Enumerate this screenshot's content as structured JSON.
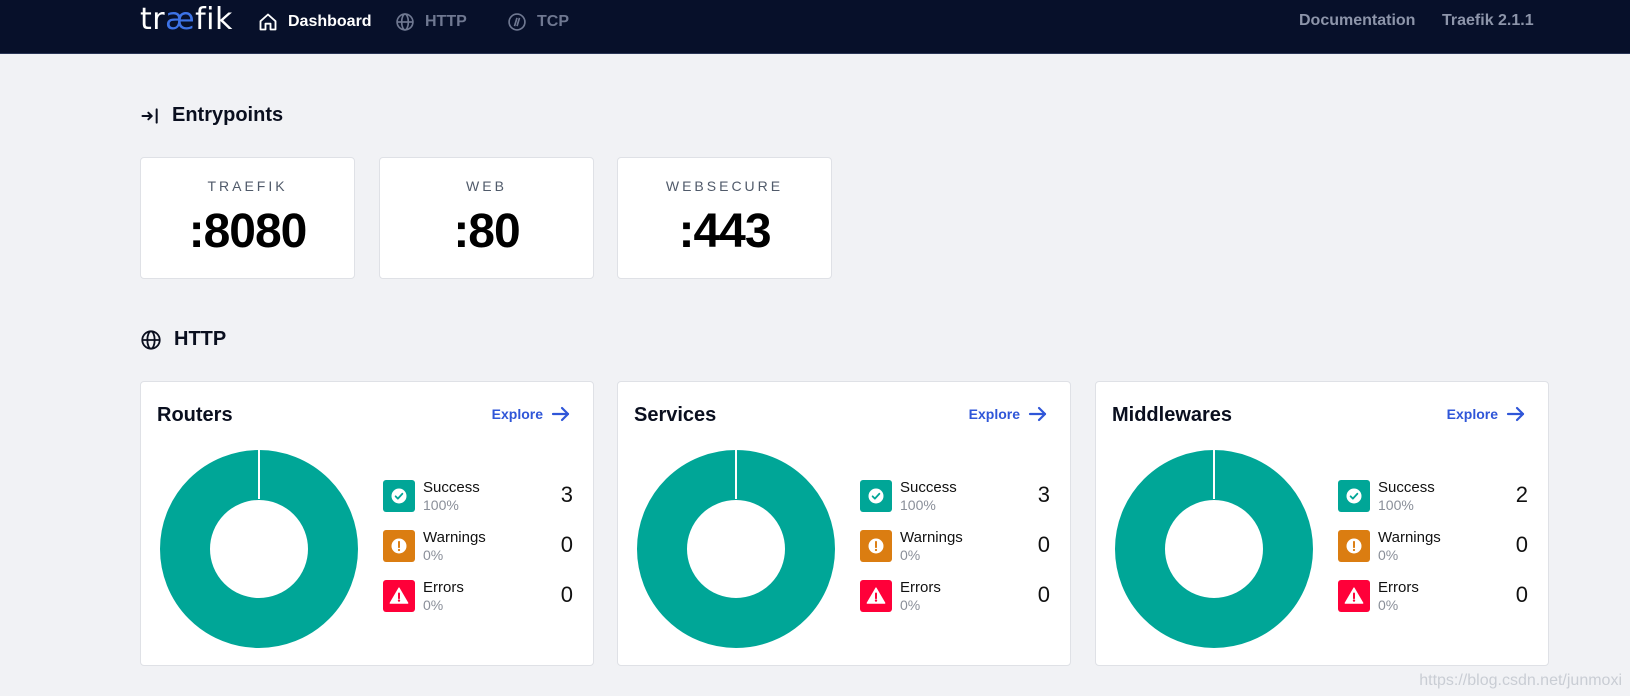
{
  "nav": {
    "logo_pre": "tr",
    "logo_ae": "æ",
    "logo_post": "fik",
    "items": [
      {
        "label": "Dashboard",
        "icon": "home-icon",
        "active": true
      },
      {
        "label": "HTTP",
        "icon": "globe-icon",
        "active": false
      },
      {
        "label": "TCP",
        "icon": "tcp-icon",
        "active": false
      }
    ],
    "documentation": "Documentation",
    "version": "Traefik 2.1.1"
  },
  "entrypoints": {
    "title": "Entrypoints",
    "cards": [
      {
        "name": "TRAEFIK",
        "port": ":8080"
      },
      {
        "name": "WEB",
        "port": ":80"
      },
      {
        "name": "WEBSECURE",
        "port": ":443"
      }
    ]
  },
  "http": {
    "title": "HTTP",
    "explore_label": "Explore",
    "cards": [
      {
        "title": "Routers",
        "success": {
          "label": "Success",
          "pct": "100%",
          "count": "3"
        },
        "warnings": {
          "label": "Warnings",
          "pct": "0%",
          "count": "0"
        },
        "errors": {
          "label": "Errors",
          "pct": "0%",
          "count": "0"
        }
      },
      {
        "title": "Services",
        "success": {
          "label": "Success",
          "pct": "100%",
          "count": "3"
        },
        "warnings": {
          "label": "Warnings",
          "pct": "0%",
          "count": "0"
        },
        "errors": {
          "label": "Errors",
          "pct": "0%",
          "count": "0"
        }
      },
      {
        "title": "Middlewares",
        "success": {
          "label": "Success",
          "pct": "100%",
          "count": "2"
        },
        "warnings": {
          "label": "Warnings",
          "pct": "0%",
          "count": "0"
        },
        "errors": {
          "label": "Errors",
          "pct": "0%",
          "count": "0"
        }
      }
    ]
  },
  "colors": {
    "success": "#00a697",
    "warning": "#db7d11",
    "error": "#ff0039",
    "nav_bg": "#07102a",
    "accent": "#2f56d8"
  },
  "watermark": "https://blog.csdn.net/junmoxi"
}
